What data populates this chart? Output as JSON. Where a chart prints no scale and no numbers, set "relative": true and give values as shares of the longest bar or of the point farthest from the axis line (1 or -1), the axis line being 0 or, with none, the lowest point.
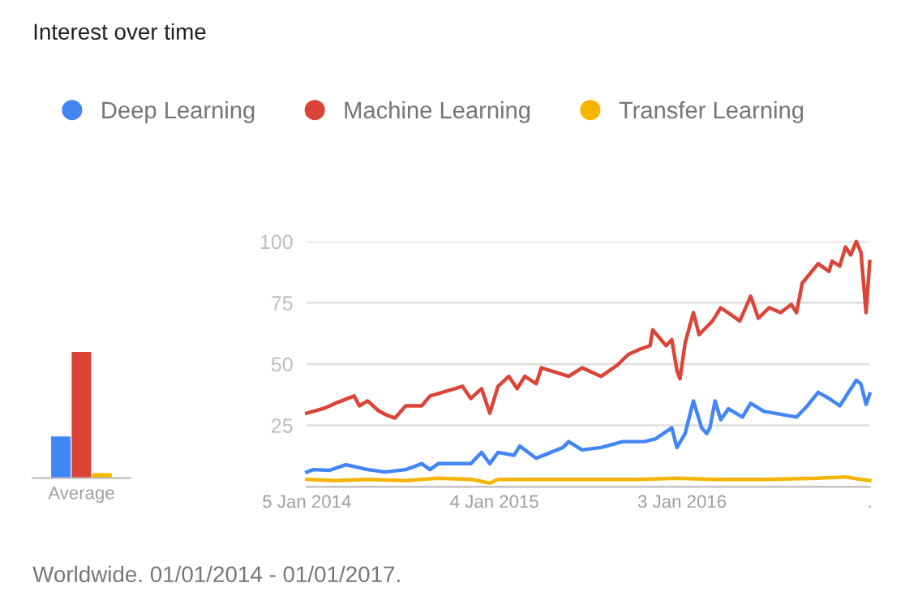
{
  "chart_data": [
    {
      "type": "bar",
      "relative": true,
      "categories": [
        "Average"
      ],
      "series": [
        {
          "color": "#4285f4",
          "values": [
            0.33
          ]
        },
        {
          "color": "#db4437",
          "values": [
            1
          ]
        },
        {
          "color": "#f4b400",
          "values": [
            0.04
          ]
        }
      ]
    },
    {
      "type": "line",
      "title": "Interest over time",
      "legend": "top",
      "grid": "y",
      "marker": "none",
      "line_style": "solid",
      "xlim": [
        "2014-01-05",
        "2017-01-01"
      ],
      "xticks": [
        {
          "value": "2014-01-05",
          "label": "5 Jan 2014"
        },
        {
          "value": "2015-01-04",
          "label": "4 Jan 2015"
        },
        {
          "value": "2016-01-03",
          "label": "3 Jan 2016"
        },
        {
          "value": "2017-01-01",
          "label": "."
        }
      ],
      "ylim": [
        0,
        100
      ],
      "yticks": [
        25,
        50,
        75,
        100
      ],
      "annotations": [
        "Worldwide. 01/01/2014 - 01/01/2017."
      ],
      "series": [
        {
          "name": "Deep Learning",
          "color": "#4285f4",
          "x": [
            "2014-01-05",
            "2014-01-18",
            "2014-02-18",
            "2014-03-22",
            "2014-05-03",
            "2014-06-06",
            "2014-07-16",
            "2014-08-16",
            "2014-09-01",
            "2014-09-17",
            "2014-10-29",
            "2014-11-19",
            "2014-12-10",
            "2014-12-26",
            "2015-01-11",
            "2015-02-11",
            "2015-02-22",
            "2015-03-26",
            "2015-05-17",
            "2015-05-28",
            "2015-06-23",
            "2015-07-30",
            "2015-09-10",
            "2015-10-22",
            "2015-11-12",
            "2015-12-14",
            "2015-12-24",
            "2016-01-09",
            "2016-01-25",
            "2016-02-10",
            "2016-02-20",
            "2016-02-26",
            "2016-03-07",
            "2016-03-18",
            "2016-04-02",
            "2016-04-29",
            "2016-05-15",
            "2016-06-10",
            "2016-08-12",
            "2016-09-02",
            "2016-09-23",
            "2016-10-14",
            "2016-11-04",
            "2016-12-06",
            "2016-12-15",
            "2016-12-25",
            "2017-01-01"
          ],
          "values": [
            6,
            7,
            6.7,
            9,
            7,
            6,
            7,
            9.4,
            7,
            9.4,
            9.4,
            9.4,
            14,
            9.4,
            14,
            12.8,
            16.6,
            11.6,
            16,
            18.4,
            15,
            16,
            18.4,
            18.4,
            19.5,
            24,
            16,
            21.7,
            35,
            24,
            21.7,
            24,
            35,
            27.3,
            31.8,
            28.4,
            34,
            30.7,
            28.4,
            33,
            38.5,
            36,
            33,
            43.4,
            41.9,
            33.6,
            37.8
          ]
        },
        {
          "name": "Machine Learning",
          "color": "#db4437",
          "x": [
            "2014-01-05",
            "2014-02-08",
            "2014-03-01",
            "2014-04-07",
            "2014-04-17",
            "2014-05-03",
            "2014-05-24",
            "2014-06-06",
            "2014-06-25",
            "2014-07-16",
            "2014-08-16",
            "2014-09-01",
            "2014-10-19",
            "2014-11-03",
            "2014-11-19",
            "2014-12-10",
            "2014-12-26",
            "2015-01-11",
            "2015-02-01",
            "2015-02-17",
            "2015-03-04",
            "2015-03-26",
            "2015-04-05",
            "2015-05-28",
            "2015-06-23",
            "2015-07-30",
            "2015-08-31",
            "2015-09-21",
            "2015-10-12",
            "2015-11-02",
            "2015-11-07",
            "2015-12-03",
            "2015-12-14",
            "2015-12-24",
            "2015-12-30",
            "2016-01-09",
            "2016-01-25",
            "2016-02-05",
            "2016-03-02",
            "2016-03-18",
            "2016-04-08",
            "2016-04-24",
            "2016-05-15",
            "2016-05-30",
            "2016-06-20",
            "2016-07-12",
            "2016-08-02",
            "2016-08-12",
            "2016-08-23",
            "2016-09-23",
            "2016-10-14",
            "2016-10-20",
            "2016-11-04",
            "2016-11-15",
            "2016-11-25",
            "2016-12-06",
            "2016-12-15",
            "2016-12-25",
            "2017-01-01"
          ],
          "values": [
            30,
            32,
            34,
            37,
            33,
            35,
            31,
            29.5,
            28,
            33,
            33,
            37,
            40,
            41,
            36,
            40,
            30,
            41,
            45,
            40,
            45,
            42,
            48.5,
            45,
            48.5,
            45,
            49.7,
            54,
            56,
            57.5,
            64,
            57.5,
            60,
            47.5,
            44,
            58.7,
            71,
            62,
            67.6,
            73,
            70,
            67.6,
            77.7,
            68.7,
            73,
            71,
            74.3,
            71,
            83,
            91,
            87.8,
            92,
            90,
            97.8,
            94.5,
            100,
            95.6,
            71,
            91.8
          ]
        },
        {
          "name": "Transfer Learning",
          "color": "#f4b400",
          "x": [
            "2014-01-05",
            "2014-03-01",
            "2014-05-03",
            "2014-07-16",
            "2014-09-17",
            "2014-11-19",
            "2014-12-26",
            "2015-01-11",
            "2015-04-05",
            "2015-07-30",
            "2015-10-12",
            "2015-12-24",
            "2016-03-02",
            "2016-06-20",
            "2016-09-23",
            "2016-11-15",
            "2016-12-15",
            "2017-01-01"
          ],
          "values": [
            3,
            2.5,
            3,
            2.5,
            3.5,
            3,
            1.5,
            3,
            3,
            3,
            3,
            3.5,
            3,
            3,
            3.5,
            4,
            3,
            2.5
          ]
        }
      ]
    }
  ]
}
